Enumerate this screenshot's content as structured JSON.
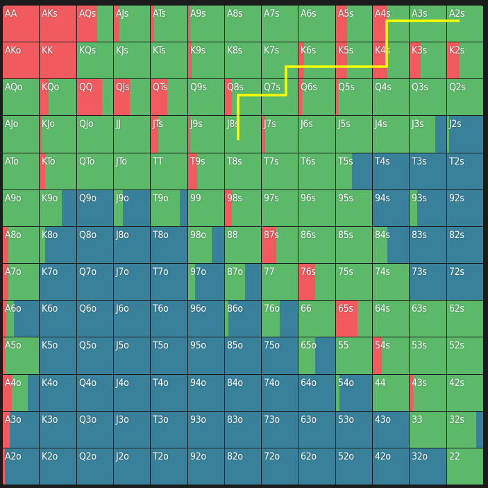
{
  "colors": {
    "raise": "#f15a5e",
    "call": "#5cb96a",
    "fold": "#39809a",
    "highlight_line": "#ffff00"
  },
  "grid": {
    "rows": [
      [
        "AA",
        "AKs",
        "AQs",
        "AJs",
        "ATs",
        "A9s",
        "A8s",
        "A7s",
        "A6s",
        "A5s",
        "A4s",
        "A3s",
        "A2s"
      ],
      [
        "AKo",
        "KK",
        "KQs",
        "KJs",
        "KTs",
        "K9s",
        "K8s",
        "K7s",
        "K6s",
        "K5s",
        "K4s",
        "K3s",
        "K2s"
      ],
      [
        "AQo",
        "KQo",
        "QQ",
        "QJs",
        "QTs",
        "Q9s",
        "Q8s",
        "Q7s",
        "Q6s",
        "Q5s",
        "Q4s",
        "Q3s",
        "Q2s"
      ],
      [
        "AJo",
        "KJo",
        "QJo",
        "JJ",
        "JTs",
        "J9s",
        "J8s",
        "J7s",
        "J6s",
        "J5s",
        "J4s",
        "J3s",
        "J2s"
      ],
      [
        "ATo",
        "KTo",
        "QTo",
        "JTo",
        "TT",
        "T9s",
        "T8s",
        "T7s",
        "T6s",
        "T5s",
        "T4s",
        "T3s",
        "T2s"
      ],
      [
        "A9o",
        "K9o",
        "Q9o",
        "J9o",
        "T9o",
        "99",
        "98s",
        "97s",
        "96s",
        "95s",
        "94s",
        "93s",
        "92s"
      ],
      [
        "A8o",
        "K8o",
        "Q8o",
        "J8o",
        "T8o",
        "98o",
        "88",
        "87s",
        "86s",
        "85s",
        "84s",
        "83s",
        "82s"
      ],
      [
        "A7o",
        "K7o",
        "Q7o",
        "J7o",
        "T7o",
        "97o",
        "87o",
        "77",
        "76s",
        "75s",
        "74s",
        "73s",
        "72s"
      ],
      [
        "A6o",
        "K6o",
        "Q6o",
        "J6o",
        "T6o",
        "96o",
        "86o",
        "76o",
        "66",
        "65s",
        "64s",
        "63s",
        "62s"
      ],
      [
        "A5o",
        "K5o",
        "Q5o",
        "J5o",
        "T5o",
        "95o",
        "85o",
        "75o",
        "65o",
        "55",
        "54s",
        "53s",
        "52s"
      ],
      [
        "A4o",
        "K4o",
        "Q4o",
        "J4o",
        "T4o",
        "94o",
        "84o",
        "74o",
        "64o",
        "54o",
        "44",
        "43s",
        "42s"
      ],
      [
        "A3o",
        "K3o",
        "Q3o",
        "J3o",
        "T3o",
        "93o",
        "83o",
        "73o",
        "63o",
        "53o",
        "43o",
        "33",
        "32s"
      ],
      [
        "A2o",
        "K2o",
        "Q2o",
        "J2o",
        "T2o",
        "92o",
        "82o",
        "72o",
        "62o",
        "52o",
        "42o",
        "32o",
        "22"
      ]
    ],
    "frequencies": [
      [
        [
          1,
          0,
          0
        ],
        [
          1,
          0,
          0
        ],
        [
          0.55,
          0.45,
          0
        ],
        [
          0.15,
          0.85,
          0
        ],
        [
          0.1,
          0.9,
          0
        ],
        [
          0.05,
          0.95,
          0
        ],
        [
          0,
          1,
          0
        ],
        [
          0,
          1,
          0
        ],
        [
          0,
          1,
          0
        ],
        [
          0.3,
          0.7,
          0
        ],
        [
          0.4,
          0.6,
          0
        ],
        [
          0,
          1,
          0
        ],
        [
          0,
          1,
          0
        ]
      ],
      [
        [
          1,
          0,
          0
        ],
        [
          1,
          0,
          0
        ],
        [
          0,
          1,
          0
        ],
        [
          0,
          1,
          0
        ],
        [
          0,
          1,
          0
        ],
        [
          0.1,
          0.9,
          0
        ],
        [
          0,
          1,
          0
        ],
        [
          0,
          1,
          0
        ],
        [
          0.15,
          0.85,
          0
        ],
        [
          0.3,
          0.7,
          0
        ],
        [
          0.4,
          0.6,
          0
        ],
        [
          0.3,
          0.7,
          0
        ],
        [
          0.35,
          0.65,
          0
        ]
      ],
      [
        [
          0,
          1,
          0
        ],
        [
          0.25,
          0.75,
          0
        ],
        [
          0.7,
          0.3,
          0
        ],
        [
          0.45,
          0.55,
          0
        ],
        [
          0.45,
          0.55,
          0
        ],
        [
          0,
          1,
          0
        ],
        [
          0.2,
          0.8,
          0
        ],
        [
          0,
          1,
          0
        ],
        [
          0.1,
          0.9,
          0
        ],
        [
          0.05,
          0.95,
          0
        ],
        [
          0,
          1,
          0
        ],
        [
          0,
          1,
          0
        ],
        [
          0,
          1,
          0
        ]
      ],
      [
        [
          0,
          1,
          0
        ],
        [
          0.05,
          0.95,
          0
        ],
        [
          0,
          1,
          0
        ],
        [
          0,
          1,
          0
        ],
        [
          0.2,
          0.8,
          0
        ],
        [
          0.05,
          0.95,
          0
        ],
        [
          0,
          1,
          0
        ],
        [
          0.1,
          0.9,
          0
        ],
        [
          0,
          1,
          0
        ],
        [
          0,
          1,
          0
        ],
        [
          0,
          1,
          0
        ],
        [
          0,
          0.7,
          0.3
        ],
        [
          0,
          0.05,
          0.95
        ]
      ],
      [
        [
          0,
          1,
          0
        ],
        [
          0.15,
          0.85,
          0
        ],
        [
          0,
          1,
          0
        ],
        [
          0,
          1,
          0
        ],
        [
          0,
          1,
          0
        ],
        [
          0.25,
          0.75,
          0
        ],
        [
          0,
          1,
          0
        ],
        [
          0,
          1,
          0
        ],
        [
          0,
          1,
          0
        ],
        [
          0,
          0.45,
          0.55
        ],
        [
          0,
          0,
          1
        ],
        [
          0,
          0,
          1
        ],
        [
          0,
          0,
          1
        ]
      ],
      [
        [
          0,
          1,
          0
        ],
        [
          0,
          0.6,
          0.4
        ],
        [
          0,
          0,
          1
        ],
        [
          0,
          0.25,
          0.75
        ],
        [
          0,
          0.8,
          0.2
        ],
        [
          0,
          1,
          0
        ],
        [
          0.2,
          0.8,
          0
        ],
        [
          0,
          1,
          0
        ],
        [
          0,
          1,
          0
        ],
        [
          0,
          1,
          0
        ],
        [
          0,
          0,
          1
        ],
        [
          0,
          0.2,
          0.8
        ],
        [
          0,
          0,
          1
        ]
      ],
      [
        [
          0.15,
          0.85,
          0
        ],
        [
          0,
          0.15,
          0.85
        ],
        [
          0,
          0,
          1
        ],
        [
          0,
          0,
          1
        ],
        [
          0,
          0,
          1
        ],
        [
          0,
          0.65,
          0.35
        ],
        [
          0,
          1,
          0
        ],
        [
          0.4,
          0.6,
          0
        ],
        [
          0,
          1,
          0
        ],
        [
          0,
          1,
          0
        ],
        [
          0,
          0.4,
          0.6
        ],
        [
          0,
          0,
          1
        ],
        [
          0,
          0,
          1
        ]
      ],
      [
        [
          0.15,
          0.85,
          0
        ],
        [
          0,
          0,
          1
        ],
        [
          0,
          0,
          1
        ],
        [
          0,
          0,
          1
        ],
        [
          0,
          0,
          1
        ],
        [
          0,
          0.2,
          0.8
        ],
        [
          0,
          0.55,
          0.45
        ],
        [
          0,
          1,
          0
        ],
        [
          0.45,
          0.55,
          0
        ],
        [
          0,
          1,
          0
        ],
        [
          0,
          1,
          0
        ],
        [
          0,
          0,
          1
        ],
        [
          0,
          0,
          1
        ]
      ],
      [
        [
          0.1,
          0.2,
          0.7
        ],
        [
          0,
          0,
          1
        ],
        [
          0,
          0,
          1
        ],
        [
          0,
          0,
          1
        ],
        [
          0,
          0,
          1
        ],
        [
          0,
          0,
          1
        ],
        [
          0,
          0.1,
          0.9
        ],
        [
          0,
          0.5,
          0.5
        ],
        [
          0,
          1,
          0
        ],
        [
          0.6,
          0.4,
          0
        ],
        [
          0,
          1,
          0
        ],
        [
          0,
          1,
          0
        ],
        [
          0,
          1,
          0
        ]
      ],
      [
        [
          0.05,
          0.95,
          0
        ],
        [
          0,
          0,
          1
        ],
        [
          0,
          0,
          1
        ],
        [
          0,
          0,
          1
        ],
        [
          0,
          0,
          1
        ],
        [
          0,
          0,
          1
        ],
        [
          0,
          0,
          1
        ],
        [
          0,
          0,
          1
        ],
        [
          0,
          0.45,
          0.55
        ],
        [
          0,
          1,
          0
        ],
        [
          0.25,
          0.75,
          0
        ],
        [
          0,
          1,
          0
        ],
        [
          0,
          1,
          0
        ]
      ],
      [
        [
          0.25,
          0.45,
          0.3
        ],
        [
          0,
          0,
          1
        ],
        [
          0,
          0,
          1
        ],
        [
          0,
          0,
          1
        ],
        [
          0,
          0,
          1
        ],
        [
          0,
          0,
          1
        ],
        [
          0,
          0,
          1
        ],
        [
          0,
          0,
          1
        ],
        [
          0,
          0,
          1
        ],
        [
          0,
          0.1,
          0.9
        ],
        [
          0,
          1,
          0
        ],
        [
          0.1,
          0.9,
          0
        ],
        [
          0,
          1,
          0
        ]
      ],
      [
        [
          0.2,
          0,
          0.8
        ],
        [
          0,
          0,
          1
        ],
        [
          0,
          0,
          1
        ],
        [
          0,
          0,
          1
        ],
        [
          0,
          0,
          1
        ],
        [
          0,
          0,
          1
        ],
        [
          0,
          0,
          1
        ],
        [
          0,
          0,
          1
        ],
        [
          0,
          0,
          1
        ],
        [
          0,
          0,
          1
        ],
        [
          0,
          0,
          1
        ],
        [
          0,
          1,
          0
        ],
        [
          0,
          0.8,
          0.2
        ]
      ],
      [
        [
          0.05,
          0,
          0.95
        ],
        [
          0,
          0,
          1
        ],
        [
          0,
          0,
          1
        ],
        [
          0,
          0,
          1
        ],
        [
          0,
          0,
          1
        ],
        [
          0,
          0,
          1
        ],
        [
          0,
          0,
          1
        ],
        [
          0,
          0,
          1
        ],
        [
          0,
          0,
          1
        ],
        [
          0,
          0,
          1
        ],
        [
          0,
          0,
          1
        ],
        [
          0,
          0,
          1
        ],
        [
          0,
          1,
          0
        ]
      ]
    ]
  }
}
